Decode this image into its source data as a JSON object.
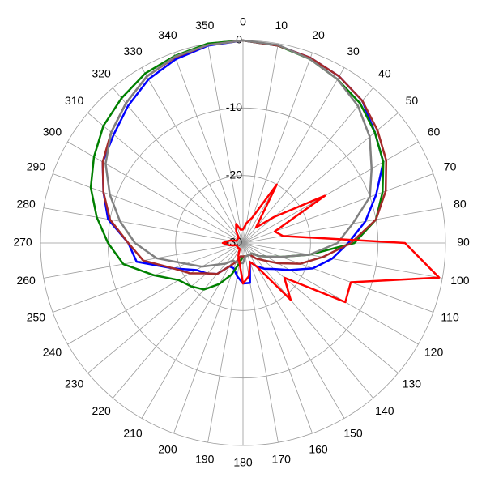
{
  "chart_data": {
    "type": "polar",
    "theta": [
      0,
      10,
      20,
      30,
      40,
      50,
      60,
      70,
      80,
      90,
      100,
      110,
      120,
      130,
      140,
      150,
      160,
      170,
      180,
      190,
      200,
      210,
      220,
      230,
      240,
      250,
      260,
      270,
      280,
      290,
      300,
      310,
      320,
      330,
      340,
      350
    ],
    "thetaticks": [
      0,
      10,
      20,
      30,
      40,
      50,
      60,
      70,
      80,
      90,
      100,
      110,
      120,
      130,
      140,
      150,
      160,
      170,
      180,
      190,
      200,
      210,
      220,
      230,
      240,
      250,
      260,
      270,
      280,
      290,
      300,
      310,
      320,
      330,
      340,
      350
    ],
    "direction": "clockwise",
    "zero_location": "top",
    "rlim": [
      -30,
      0
    ],
    "rticks": [
      -30,
      -20,
      -10,
      0
    ],
    "grid": true,
    "series": [
      {
        "color": "#0000ff",
        "values": [
          0,
          -0.3,
          -0.8,
          -1.5,
          -2.5,
          -4.5,
          -6,
          -9,
          -11.6,
          -14.4,
          -16.6,
          -19,
          -22,
          -24,
          -25,
          -26,
          -27,
          -24,
          -24,
          -25,
          -26,
          -26,
          -24,
          -23,
          -22,
          -19,
          -14,
          -13,
          -9.7,
          -8,
          -6,
          -5,
          -3.5,
          -2,
          -1,
          -0.3
        ]
      },
      {
        "color": "#008000",
        "values": [
          0,
          -0.3,
          -1,
          -2,
          -3,
          -4.5,
          -6,
          -8,
          -10,
          -13.5,
          -20,
          -24,
          -26,
          -27,
          -28,
          -28,
          -28,
          -28,
          -28,
          -27,
          -25,
          -23,
          -21,
          -20,
          -19,
          -16,
          -12,
          -10,
          -8,
          -6,
          -4.5,
          -3,
          -2,
          -1,
          -0.5,
          0
        ]
      },
      {
        "color": "#a52a2a",
        "values": [
          0,
          -0.3,
          -0.8,
          -1.5,
          -2.5,
          -4,
          -5.5,
          -7.5,
          -10,
          -14,
          -18,
          -21,
          -24,
          -26,
          -27,
          -28,
          -28,
          -28,
          -28,
          -28,
          -27,
          -26,
          -24,
          -23,
          -21,
          -19,
          -15,
          -13,
          -10,
          -8,
          -6,
          -4.5,
          -3,
          -1.5,
          -0.7,
          -0.2
        ]
      },
      {
        "color": "#808080",
        "values": [
          0,
          -0.2,
          -1,
          -2,
          -3.5,
          -5.5,
          -8,
          -10,
          -13.5,
          -16,
          -20,
          -24,
          -26,
          -27,
          -28,
          -28,
          -28,
          -28,
          -27,
          -27,
          -27,
          -27,
          -26,
          -25,
          -23,
          -21,
          -17,
          -14,
          -11.5,
          -9,
          -6.5,
          -4.5,
          -3,
          -1.5,
          -0.6,
          -0.2
        ]
      },
      {
        "color": "#ff0000",
        "values": [
          -28,
          -27,
          -26,
          -20,
          -27,
          -24,
          -16,
          -25,
          -24,
          -6,
          -0.5,
          -13,
          -12.5,
          -22,
          -19,
          -26,
          -27,
          -25,
          -24,
          -27,
          -28,
          -29,
          -29,
          -29,
          -29,
          -29,
          -28,
          -27,
          -28,
          -29,
          -29,
          -29,
          -29,
          -28,
          -27,
          -28
        ]
      }
    ]
  }
}
